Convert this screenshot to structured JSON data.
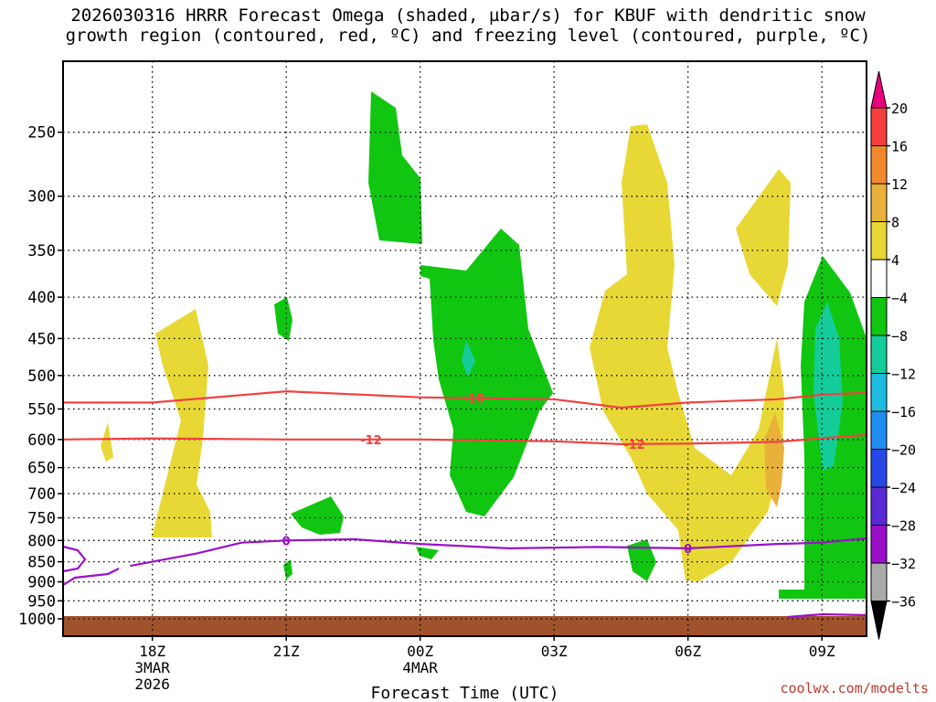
{
  "title": {
    "line1": "2026030316 HRRR Forecast Omega (shaded, µbar/s) for KBUF with dendritic snow",
    "line2": "growth region (contoured, red, ºC) and freezing level (contoured, purple, ºC)"
  },
  "credit": "coolwx.com/modelts",
  "chart_data": {
    "type": "contour",
    "xlabel": "Forecast Time (UTC)",
    "ylabel": "",
    "x_range_hours_from_init": [
      0,
      18
    ],
    "y_range_hpa": [
      1000,
      200
    ],
    "y_scale": "log-pressure",
    "x_ticks": [
      {
        "label": "18Z",
        "sub": [
          "3MAR",
          "2026"
        ],
        "hour": 2
      },
      {
        "label": "21Z",
        "sub": [],
        "hour": 5
      },
      {
        "label": "00Z",
        "sub": [
          "4MAR"
        ],
        "hour": 8
      },
      {
        "label": "03Z",
        "sub": [],
        "hour": 11
      },
      {
        "label": "06Z",
        "sub": [],
        "hour": 14
      },
      {
        "label": "09Z",
        "sub": [],
        "hour": 17
      }
    ],
    "y_ticks": [
      250,
      300,
      350,
      400,
      450,
      500,
      550,
      600,
      650,
      700,
      750,
      800,
      850,
      900,
      950,
      1000
    ],
    "grid": "dotted",
    "colorbar": {
      "labels": [
        "20",
        "16",
        "12",
        "8",
        "4",
        "−4",
        "−8",
        "−12",
        "−16",
        "−20",
        "−24",
        "−28",
        "−32",
        "−36"
      ],
      "colors": [
        "#e8007c",
        "#f53e3e",
        "#f28a2c",
        "#e9b13a",
        "#e8d835",
        "#ffffff",
        "#11c611",
        "#14cc9a",
        "#1dbce0",
        "#1f8ef0",
        "#2747e6",
        "#5a2ad6",
        "#9a10c9",
        "#aaaaaa",
        "#000000"
      ]
    },
    "contours": {
      "dendritic": {
        "color": "#f44040",
        "levels": [
          {
            "label": "-18",
            "pressure_at_hour": [
              [
                0,
                540
              ],
              [
                2,
                540
              ],
              [
                5,
                523
              ],
              [
                8,
                532
              ],
              [
                11,
                535
              ],
              [
                12.5,
                548
              ],
              [
                14,
                540
              ],
              [
                16,
                535
              ],
              [
                17,
                528
              ],
              [
                18,
                525
              ]
            ]
          },
          {
            "label": "-12",
            "pressure_at_hour": [
              [
                0,
                600
              ],
              [
                2,
                598
              ],
              [
                5,
                600
              ],
              [
                8,
                600
              ],
              [
                11,
                603
              ],
              [
                12.5,
                608
              ],
              [
                14,
                607
              ],
              [
                16,
                604
              ],
              [
                18,
                592
              ]
            ]
          }
        ]
      },
      "freezing": {
        "color": "#9a10c9",
        "levels": [
          {
            "label": "0",
            "pressure_at_hour": [
              [
                1.5,
                860
              ],
              [
                3,
                830
              ],
              [
                4,
                805
              ],
              [
                5,
                800
              ],
              [
                6.5,
                797
              ],
              [
                8,
                808
              ],
              [
                10,
                818
              ],
              [
                12,
                815
              ],
              [
                14,
                818
              ],
              [
                16,
                808
              ],
              [
                17,
                805
              ],
              [
                18,
                795
              ]
            ]
          }
        ]
      }
    },
    "terrain_color": "#a0522d",
    "terrain_top_hpa": 980
  }
}
